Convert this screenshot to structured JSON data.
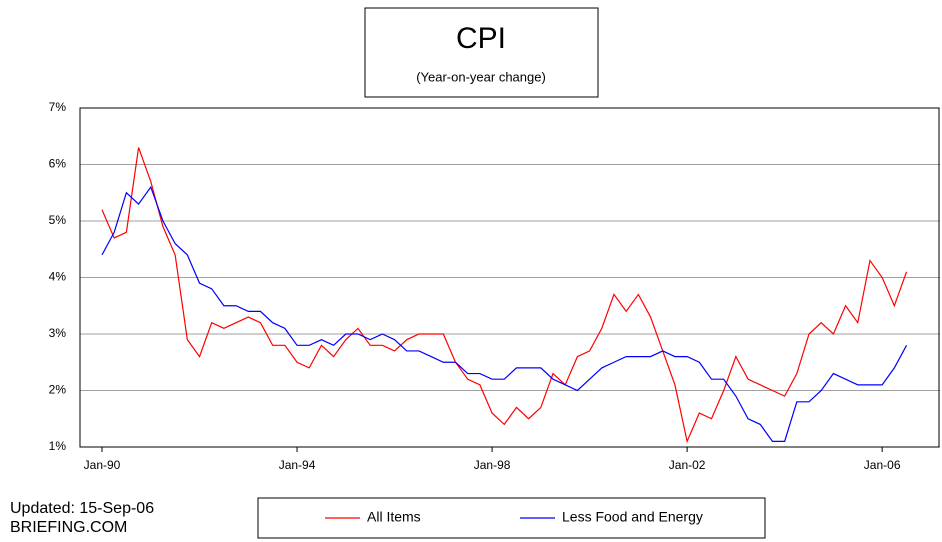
{
  "chart_data": {
    "type": "line",
    "title": "CPI",
    "subtitle": "(Year-on-year change)",
    "categories": [
      "Jan-90",
      null,
      null,
      null,
      null,
      null,
      null,
      null,
      null,
      null,
      null,
      null,
      null,
      null,
      null,
      null,
      "Jan-94",
      null,
      null,
      null,
      null,
      null,
      null,
      null,
      null,
      null,
      null,
      null,
      null,
      null,
      null,
      null,
      "Jan-98",
      null,
      null,
      null,
      null,
      null,
      null,
      null,
      null,
      null,
      null,
      null,
      null,
      null,
      null,
      null,
      "Jan-02",
      null,
      null,
      null,
      null,
      null,
      null,
      null,
      null,
      null,
      null,
      null,
      null,
      null,
      null,
      null,
      "Jan-06",
      null,
      null
    ],
    "series": [
      {
        "name": "All Items",
        "color": "#ff0000",
        "values": [
          5.2,
          4.7,
          4.8,
          6.3,
          5.7,
          4.9,
          4.4,
          2.9,
          2.6,
          3.2,
          3.1,
          3.2,
          3.3,
          3.2,
          2.8,
          2.8,
          2.5,
          2.4,
          2.8,
          2.6,
          2.9,
          3.1,
          2.8,
          2.8,
          2.7,
          2.9,
          3.0,
          3.0,
          3.0,
          2.5,
          2.2,
          2.1,
          1.6,
          1.4,
          1.7,
          1.5,
          1.7,
          2.3,
          2.1,
          2.6,
          2.7,
          3.1,
          3.7,
          3.4,
          3.7,
          3.3,
          2.7,
          2.1,
          1.1,
          1.6,
          1.5,
          2.0,
          2.6,
          2.2,
          2.1,
          2.0,
          1.9,
          2.3,
          3.0,
          3.2,
          3.0,
          3.5,
          3.2,
          4.3,
          4.0,
          3.5,
          4.1
        ]
      },
      {
        "name": "Less Food and Energy",
        "color": "#0000ff",
        "values": [
          4.4,
          4.8,
          5.5,
          5.3,
          5.6,
          5.0,
          4.6,
          4.4,
          3.9,
          3.8,
          3.5,
          3.5,
          3.4,
          3.4,
          3.2,
          3.1,
          2.8,
          2.8,
          2.9,
          2.8,
          3.0,
          3.0,
          2.9,
          3.0,
          2.9,
          2.7,
          2.7,
          2.6,
          2.5,
          2.5,
          2.3,
          2.3,
          2.2,
          2.2,
          2.4,
          2.4,
          2.4,
          2.2,
          2.1,
          2.0,
          2.2,
          2.4,
          2.5,
          2.6,
          2.6,
          2.6,
          2.7,
          2.6,
          2.6,
          2.5,
          2.2,
          2.2,
          1.9,
          1.5,
          1.4,
          1.1,
          1.1,
          1.8,
          1.8,
          2.0,
          2.3,
          2.2,
          2.1,
          2.1,
          2.1,
          2.4,
          2.8
        ]
      }
    ],
    "ylim": [
      1,
      7
    ],
    "yticks": [
      {
        "value": 1,
        "label": "1%"
      },
      {
        "value": 2,
        "label": "2%"
      },
      {
        "value": 3,
        "label": "3%"
      },
      {
        "value": 4,
        "label": "4%"
      },
      {
        "value": 5,
        "label": "5%"
      },
      {
        "value": 6,
        "label": "6%"
      },
      {
        "value": 7,
        "label": "7%"
      }
    ],
    "grid": true,
    "footnote": [
      "Updated: 15-Sep-06",
      "BRIEFING.COM"
    ]
  }
}
